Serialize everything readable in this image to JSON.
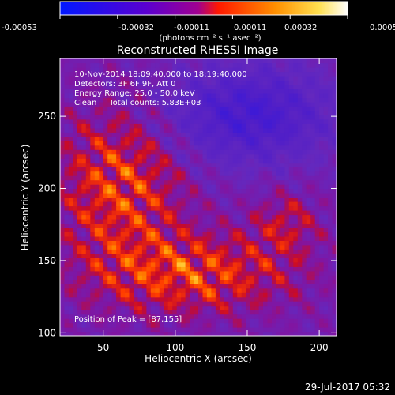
{
  "colorbar": {
    "ticks": [
      "-0.00053",
      "-0.00032",
      "-0.00011",
      "0.00011",
      "0.00032",
      "0.00053"
    ],
    "unit_label": "(photons cm⁻² s⁻¹ asec⁻²)",
    "colors": [
      "#0018ff",
      "#6a00c8",
      "#b00080",
      "#ff2000",
      "#ff9000",
      "#ffe060",
      "#ffffff"
    ]
  },
  "chart_data": {
    "type": "heatmap",
    "title": "Reconstructed RHESSI Image",
    "xlabel": "Heliocentric X (arcsec)",
    "ylabel": "Heliocentric Y (arcsec)",
    "xlim": [
      20,
      212
    ],
    "ylim": [
      98,
      290
    ],
    "x_ticks": [
      50,
      100,
      150,
      200
    ],
    "y_ticks": [
      100,
      150,
      200,
      250
    ],
    "value_range": [
      -0.00053,
      0.00053
    ],
    "annotations": [
      "10-Nov-2014 18:09:40.000 to 18:19:40.000",
      "Detectors: 3F 6F 9F, Att 0",
      "Energy Range: 25.0 - 50.0 keV",
      "Clean     Total counts: 5.83E+03"
    ],
    "peak_label": "Position of Peak = [87,155]",
    "peak": [
      87,
      155
    ]
  },
  "footer": {
    "timestamp": "29-Jul-2017 05:32"
  }
}
